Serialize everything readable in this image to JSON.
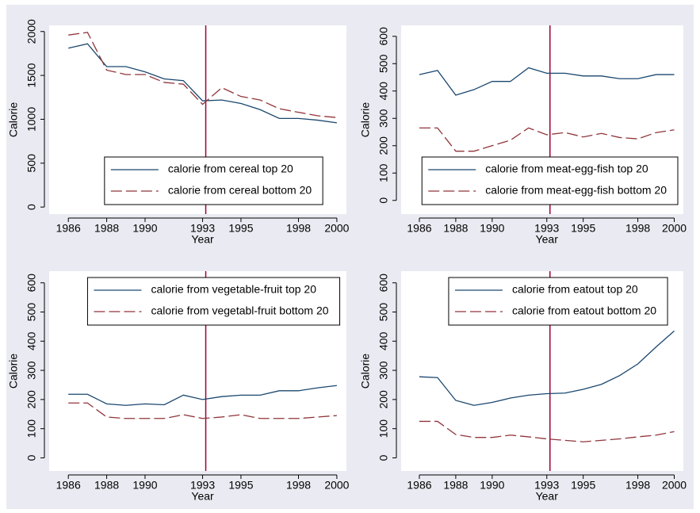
{
  "chart_data": [
    {
      "type": "line",
      "y_label": "Calorie",
      "x_label": "Year",
      "x": [
        1986,
        1987,
        1988,
        1989,
        1990,
        1991,
        1992,
        1993,
        1994,
        1995,
        1996,
        1997,
        1998,
        1999,
        2000
      ],
      "series": [
        {
          "name": "calorie from cereal top 20",
          "color": "#1a476f",
          "dashed": false,
          "values": [
            1810,
            1860,
            1600,
            1600,
            1540,
            1460,
            1440,
            1210,
            1220,
            1180,
            1110,
            1010,
            1010,
            990,
            960
          ]
        },
        {
          "name": "calorie from cereal bottom 20",
          "color": "#90353b",
          "dashed": true,
          "values": [
            1960,
            1990,
            1560,
            1510,
            1510,
            1420,
            1400,
            1170,
            1360,
            1260,
            1220,
            1120,
            1080,
            1040,
            1020
          ]
        }
      ],
      "xlim": [
        1985,
        2000.5
      ],
      "ylim": [
        -80,
        2070
      ],
      "xticks": [
        1986,
        1988,
        1990,
        1993,
        1995,
        1998,
        2000
      ],
      "yticks": [
        0,
        500,
        1000,
        1500,
        2000
      ],
      "vline": 1993,
      "vline_color": "#a0003c",
      "legend_position": "bottom"
    },
    {
      "type": "line",
      "y_label": "Calorie",
      "x_label": "Year",
      "x": [
        1986,
        1987,
        1988,
        1989,
        1990,
        1991,
        1992,
        1993,
        1994,
        1995,
        1996,
        1997,
        1998,
        1999,
        2000
      ],
      "series": [
        {
          "name": "calorie from meat-egg-fish top 20",
          "color": "#1a476f",
          "dashed": false,
          "values": [
            460,
            475,
            385,
            405,
            435,
            435,
            485,
            465,
            465,
            455,
            455,
            445,
            445,
            460,
            460
          ]
        },
        {
          "name": "calorie from meat-egg-fish bottom 20",
          "color": "#90353b",
          "dashed": true,
          "values": [
            265,
            265,
            180,
            180,
            200,
            220,
            265,
            240,
            248,
            232,
            245,
            230,
            225,
            248,
            258
          ]
        }
      ],
      "xlim": [
        1985,
        2000.5
      ],
      "ylim": [
        -50,
        640
      ],
      "xticks": [
        1986,
        1988,
        1990,
        1993,
        1995,
        1998,
        2000
      ],
      "yticks": [
        0,
        100,
        200,
        300,
        400,
        500,
        600
      ],
      "vline": 1993,
      "vline_color": "#a0003c",
      "legend_position": "bottom"
    },
    {
      "type": "line",
      "y_label": "Calorie",
      "x_label": "Year",
      "x": [
        1986,
        1987,
        1988,
        1989,
        1990,
        1991,
        1992,
        1993,
        1994,
        1995,
        1996,
        1997,
        1998,
        1999,
        2000
      ],
      "series": [
        {
          "name": "calorie from vegetable-fruit top 20",
          "color": "#1a476f",
          "dashed": false,
          "values": [
            218,
            218,
            185,
            180,
            185,
            182,
            215,
            200,
            210,
            215,
            215,
            230,
            230,
            240,
            248
          ]
        },
        {
          "name": "calorie from vegetabl-fruit bottom 20",
          "color": "#90353b",
          "dashed": true,
          "values": [
            188,
            188,
            140,
            135,
            135,
            135,
            148,
            135,
            140,
            148,
            135,
            135,
            135,
            140,
            145
          ]
        }
      ],
      "xlim": [
        1985,
        2000.5
      ],
      "ylim": [
        -45,
        640
      ],
      "xticks": [
        1986,
        1988,
        1990,
        1993,
        1995,
        1998,
        2000
      ],
      "yticks": [
        0,
        100,
        200,
        300,
        400,
        500,
        600
      ],
      "vline": 1993,
      "vline_color": "#a0003c",
      "legend_position": "top"
    },
    {
      "type": "line",
      "y_label": "Calorie",
      "x_label": "Year",
      "x": [
        1986,
        1987,
        1988,
        1989,
        1990,
        1991,
        1992,
        1993,
        1994,
        1995,
        1996,
        1997,
        1998,
        1999,
        2000
      ],
      "series": [
        {
          "name": "calorie from eatout top 20",
          "color": "#1a476f",
          "dashed": false,
          "values": [
            278,
            275,
            197,
            180,
            190,
            205,
            215,
            220,
            222,
            235,
            252,
            282,
            322,
            380,
            435
          ]
        },
        {
          "name": "calorie from eatout bottom 20",
          "color": "#90353b",
          "dashed": true,
          "values": [
            125,
            125,
            80,
            70,
            70,
            78,
            72,
            65,
            60,
            55,
            60,
            65,
            72,
            78,
            90
          ]
        }
      ],
      "xlim": [
        1985,
        2000.5
      ],
      "ylim": [
        -45,
        640
      ],
      "xticks": [
        1986,
        1988,
        1990,
        1993,
        1995,
        1998,
        2000
      ],
      "yticks": [
        0,
        100,
        200,
        300,
        400,
        500,
        600
      ],
      "vline": 1993,
      "vline_color": "#a0003c",
      "legend_position": "top"
    }
  ]
}
